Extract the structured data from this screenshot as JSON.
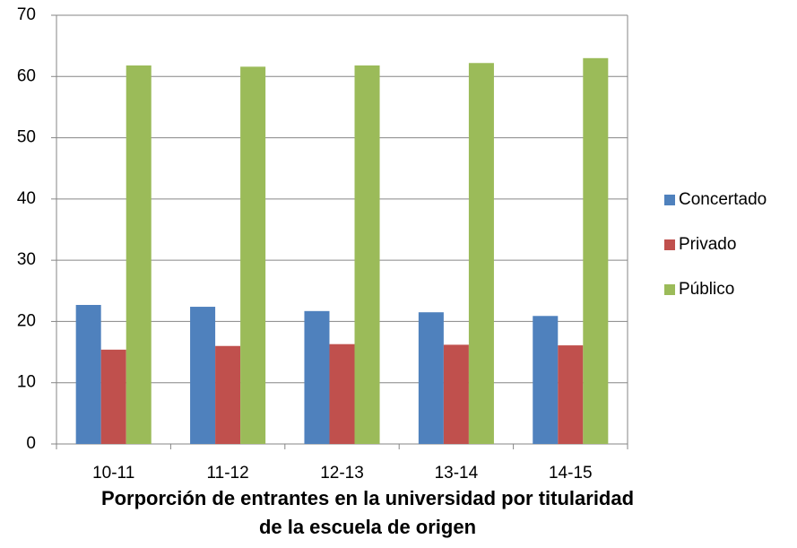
{
  "chart_data": {
    "type": "bar",
    "title": "Porporción de entrantes en la universidad por titularidad de la escuela de origen",
    "categories": [
      "10-11",
      "11-12",
      "12-13",
      "13-14",
      "14-15"
    ],
    "series": [
      {
        "name": "Concertado",
        "color": "#4f81bd",
        "values": [
          22.7,
          22.4,
          21.7,
          21.5,
          20.9
        ]
      },
      {
        "name": "Privado",
        "color": "#c0504d",
        "values": [
          15.4,
          16.0,
          16.3,
          16.2,
          16.1
        ]
      },
      {
        "name": "Público",
        "color": "#9bbb59",
        "values": [
          61.8,
          61.6,
          61.8,
          62.2,
          63.0
        ]
      }
    ],
    "ylim": [
      0,
      70
    ],
    "yticks": [
      0,
      10,
      20,
      30,
      40,
      50,
      60,
      70
    ],
    "grid": true,
    "legend": "right"
  }
}
